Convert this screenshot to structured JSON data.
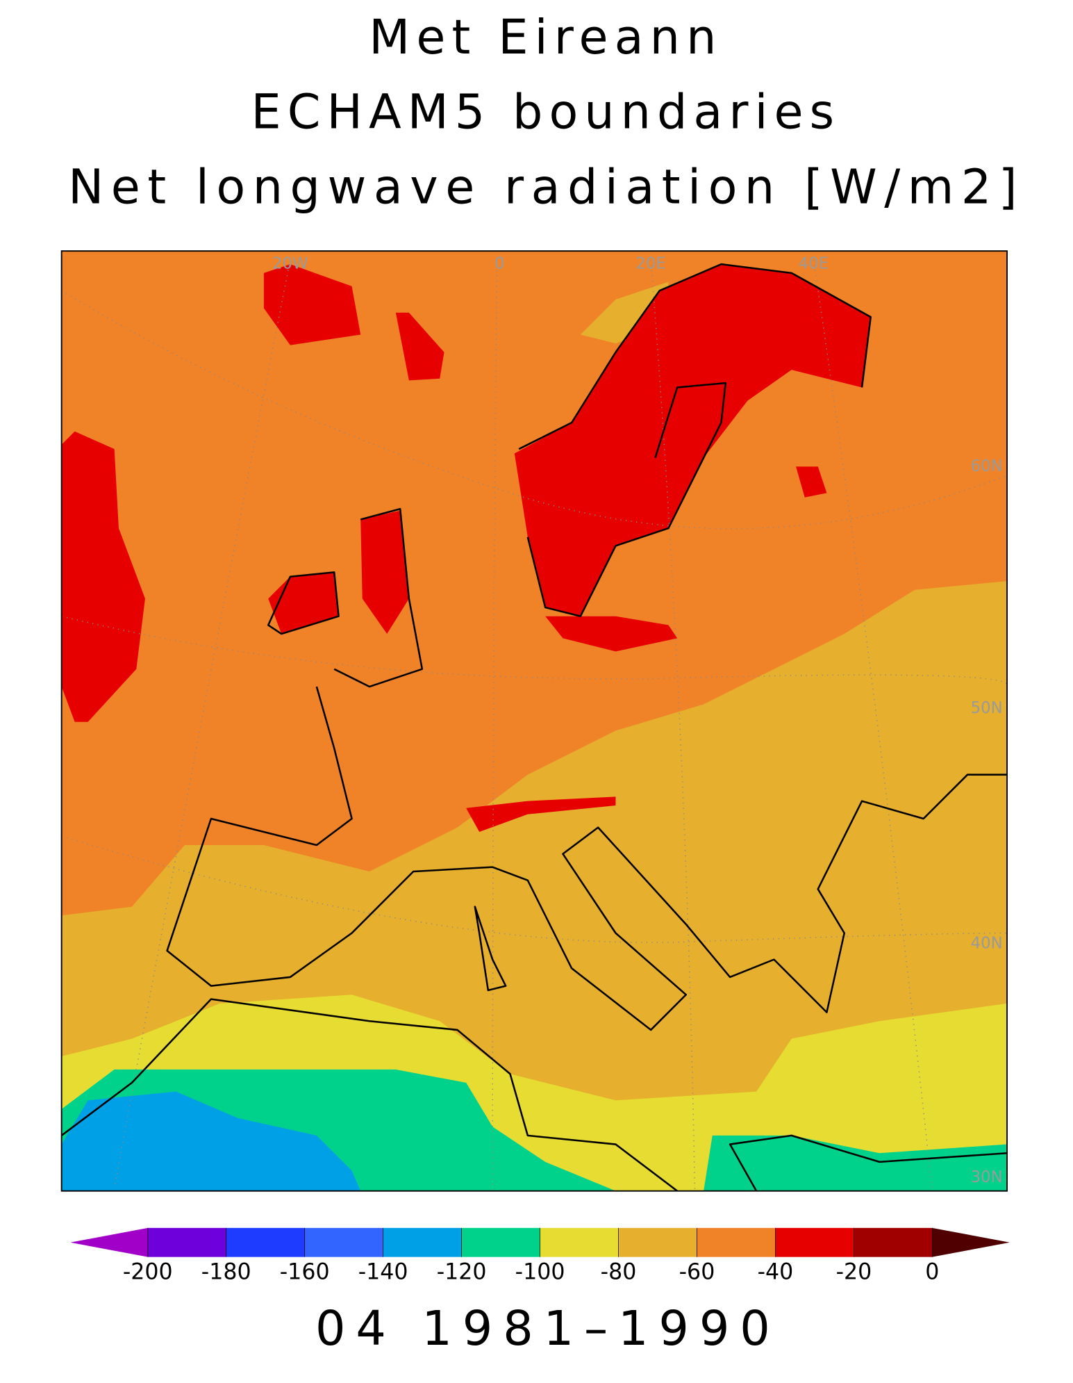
{
  "header": {
    "title_lines": [
      "Met Eireann",
      "ECHAM5 boundaries",
      "Net longwave radiation [W/m2]"
    ]
  },
  "map": {
    "grid_labels": [
      "20W",
      "0",
      "20E",
      "40E",
      "60N",
      "50N",
      "40N",
      "30N"
    ]
  },
  "colorbar": {
    "ticks": [
      -200,
      -180,
      -160,
      -140,
      -120,
      -100,
      -80,
      -60,
      -40,
      -20,
      0
    ],
    "colors": [
      "#a000c8",
      "#6e00dc",
      "#1e3cff",
      "#3264ff",
      "#00a0e6",
      "#00d28c",
      "#e6dc32",
      "#e6af2d",
      "#f08228",
      "#e60000",
      "#a00000",
      "#500000"
    ]
  },
  "footer": {
    "period": "04 1981–1990"
  }
}
